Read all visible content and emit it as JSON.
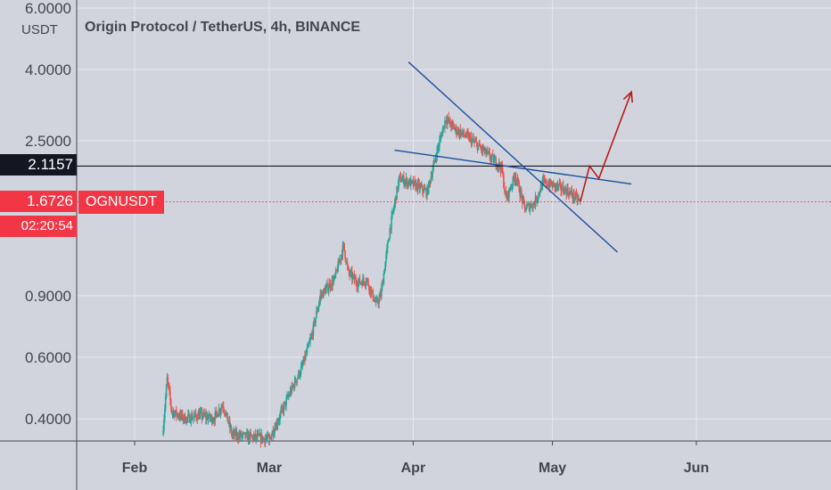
{
  "header": {
    "title": "Origin Protocol / TetherUS, 4h, BINANCE",
    "currency_unit": "USDT"
  },
  "price_axis": {
    "ticks": [
      "6.0000",
      "4.0000",
      "2.5000",
      "0.9000",
      "0.6000",
      "0.4000"
    ]
  },
  "time_axis": {
    "ticks": [
      "Feb",
      "Mar",
      "Apr",
      "May",
      "Jun"
    ]
  },
  "markers": {
    "level_line_price": "2.1157",
    "last_price": "1.6726",
    "countdown": "02:20:54",
    "symbol": "OGNUSDT"
  },
  "colors": {
    "up": "#26a69a",
    "down": "#ef5350",
    "trendline": "#1a4fa0",
    "arrow": "#b71c1c",
    "last_price": "#f23645",
    "level": "#131722"
  },
  "chart_data": {
    "type": "candlestick",
    "title": "Origin Protocol / TetherUS, 4h, BINANCE",
    "yscale": "log",
    "ylim": [
      0.33,
      6.0
    ],
    "xlim": [
      "2020-01-20",
      "2020-06-28"
    ],
    "x_ticks": [
      "Feb",
      "Mar",
      "Apr",
      "May",
      "Jun"
    ],
    "y_ticks": [
      6.0,
      4.0,
      2.5,
      0.9,
      0.6,
      0.4
    ],
    "grid": true,
    "close_path": [
      [
        "2020-02-07",
        0.36
      ],
      [
        "2020-02-08",
        0.52
      ],
      [
        "2020-02-09",
        0.42
      ],
      [
        "2020-02-12",
        0.4
      ],
      [
        "2020-02-15",
        0.41
      ],
      [
        "2020-02-18",
        0.4
      ],
      [
        "2020-02-20",
        0.44
      ],
      [
        "2020-02-22",
        0.36
      ],
      [
        "2020-03-01",
        0.35
      ],
      [
        "2020-03-03",
        0.4
      ],
      [
        "2020-03-05",
        0.46
      ],
      [
        "2020-03-08",
        0.56
      ],
      [
        "2020-03-10",
        0.68
      ],
      [
        "2020-03-12",
        0.9
      ],
      [
        "2020-03-15",
        1.0
      ],
      [
        "2020-03-17",
        1.25
      ],
      [
        "2020-03-18",
        1.05
      ],
      [
        "2020-03-20",
        0.98
      ],
      [
        "2020-03-22",
        1.0
      ],
      [
        "2020-03-24",
        0.85
      ],
      [
        "2020-03-25",
        0.9
      ],
      [
        "2020-03-27",
        1.4
      ],
      [
        "2020-03-29",
        1.95
      ],
      [
        "2020-03-31",
        1.9
      ],
      [
        "2020-04-02",
        1.85
      ],
      [
        "2020-04-04",
        1.78
      ],
      [
        "2020-04-06",
        2.3
      ],
      [
        "2020-04-08",
        2.9
      ],
      [
        "2020-04-10",
        2.7
      ],
      [
        "2020-04-13",
        2.55
      ],
      [
        "2020-04-16",
        2.35
      ],
      [
        "2020-04-20",
        2.1
      ],
      [
        "2020-04-21",
        1.7
      ],
      [
        "2020-04-23",
        2.0
      ],
      [
        "2020-04-25",
        1.6
      ],
      [
        "2020-04-27",
        1.65
      ],
      [
        "2020-04-29",
        1.9
      ],
      [
        "2020-05-02",
        1.85
      ],
      [
        "2020-05-04",
        1.8
      ],
      [
        "2020-05-06",
        1.72
      ],
      [
        "2020-05-07",
        1.6726
      ]
    ],
    "last_price": 1.6726,
    "horizontal_level": 2.1157,
    "trendlines": [
      {
        "from": [
          "2020-03-31",
          4.2
        ],
        "to": [
          "2020-05-15",
          1.2
        ]
      },
      {
        "from": [
          "2020-03-28",
          2.35
        ],
        "to": [
          "2020-05-18",
          1.88
        ]
      }
    ],
    "projection": [
      [
        "2020-05-07",
        1.6726
      ],
      [
        "2020-05-09",
        2.1157
      ],
      [
        "2020-05-11",
        1.95
      ],
      [
        "2020-05-18",
        3.45
      ]
    ]
  }
}
